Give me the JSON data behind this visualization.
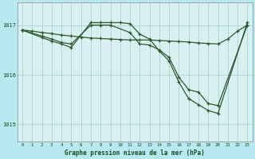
{
  "bg_color": "#b8e8f0",
  "plot_bg_color": "#d8f0f0",
  "line_color": "#2d5a2d",
  "grid_color": "#b0d8d8",
  "xlabel": "Graphe pression niveau de la mer (hPa)",
  "xlabel_color": "#1a4a1a",
  "ytick_labels": [
    "1015",
    "1016",
    "1017"
  ],
  "ytick_values": [
    1015.0,
    1016.0,
    1017.0
  ],
  "xtick_values": [
    0,
    1,
    2,
    3,
    4,
    5,
    6,
    7,
    8,
    9,
    10,
    11,
    12,
    13,
    14,
    15,
    16,
    17,
    18,
    19,
    20,
    21,
    22,
    23
  ],
  "ylim": [
    1014.65,
    1017.45
  ],
  "xlim": [
    -0.5,
    23.5
  ],
  "series1_x": [
    0,
    1,
    2,
    3,
    4,
    5,
    6,
    7,
    8,
    9,
    10,
    11,
    12,
    13,
    14,
    15,
    16,
    17,
    18,
    19,
    20,
    21,
    22,
    23
  ],
  "series1_y": [
    1016.9,
    1016.88,
    1016.85,
    1016.83,
    1016.8,
    1016.78,
    1016.76,
    1016.74,
    1016.73,
    1016.72,
    1016.71,
    1016.7,
    1016.7,
    1016.7,
    1016.69,
    1016.68,
    1016.67,
    1016.66,
    1016.64,
    1016.63,
    1016.62,
    1016.72,
    1016.88,
    1017.0
  ],
  "series2_x": [
    0,
    2,
    3,
    4,
    5,
    7,
    8,
    9,
    11,
    12,
    13,
    14,
    15,
    16,
    17,
    18,
    19,
    20,
    23
  ],
  "series2_y": [
    1016.9,
    1016.78,
    1016.72,
    1016.65,
    1016.62,
    1017.0,
    1017.0,
    1017.0,
    1016.85,
    1016.62,
    1016.6,
    1016.5,
    1016.35,
    1015.95,
    1015.7,
    1015.65,
    1015.42,
    1015.38,
    1017.0
  ],
  "series3_x": [
    0,
    2,
    3,
    4,
    5,
    7,
    8,
    9,
    10,
    11,
    12,
    13,
    14,
    15,
    16,
    17,
    18,
    19,
    20,
    23
  ],
  "series3_y": [
    1016.9,
    1016.75,
    1016.68,
    1016.62,
    1016.55,
    1017.05,
    1017.05,
    1017.05,
    1017.05,
    1017.03,
    1016.82,
    1016.72,
    1016.48,
    1016.28,
    1015.85,
    1015.52,
    1015.4,
    1015.28,
    1015.22,
    1017.05
  ]
}
